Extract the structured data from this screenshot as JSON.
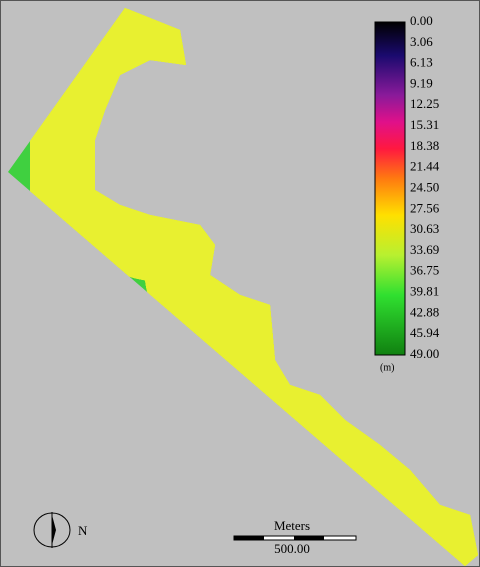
{
  "legend": {
    "labels": [
      "0.00",
      "3.06",
      "6.13",
      "9.19",
      "12.25",
      "15.31",
      "18.38",
      "21.44",
      "24.50",
      "27.56",
      "30.63",
      "33.69",
      "36.75",
      "39.81",
      "42.88",
      "45.94",
      "49.00"
    ],
    "unit": "(m)"
  },
  "north_label": "N",
  "scale_bar": {
    "title": "Meters",
    "length": "500.00"
  }
}
